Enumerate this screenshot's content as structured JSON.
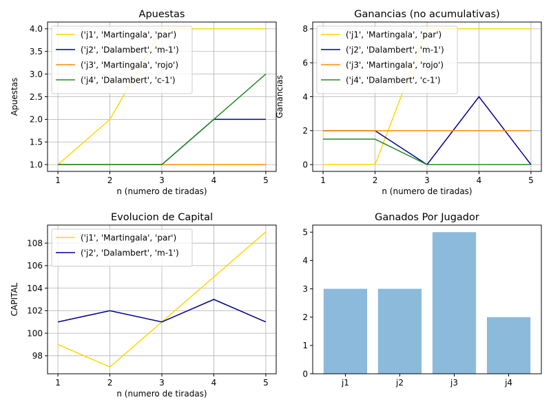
{
  "chart_data": [
    {
      "type": "line",
      "title": "Apuestas",
      "xlabel": "n (numero de tiradas)",
      "ylabel": "Apuestas",
      "x": [
        1,
        2,
        3,
        4,
        5
      ],
      "xlim": [
        0.8,
        5.2
      ],
      "ylim": [
        0.85,
        4.15
      ],
      "xticks": [
        1,
        2,
        3,
        4,
        5
      ],
      "yticks": [
        "1.0",
        "1.5",
        "2.0",
        "2.5",
        "3.0",
        "3.5",
        "4.0"
      ],
      "grid": true,
      "legend": "top-left",
      "series": [
        {
          "name": "('j1', 'Martingala', 'par')",
          "color": "#ffd700",
          "values": [
            1,
            2,
            4,
            4,
            4
          ]
        },
        {
          "name": "('j2', 'Dalambert', 'm-1')",
          "color": "#00008b",
          "values": [
            1,
            1,
            1,
            2,
            2
          ]
        },
        {
          "name": "('j3', 'Martingala', 'rojo')",
          "color": "#ff8c00",
          "values": [
            1,
            1,
            1,
            1,
            1
          ]
        },
        {
          "name": "('j4', 'Dalambert', 'c-1')",
          "color": "#228b22",
          "values": [
            1,
            1,
            1,
            2,
            3
          ]
        }
      ]
    },
    {
      "type": "line",
      "title": "Ganancias (no acumulativas)",
      "xlabel": "n (numero de tiradas)",
      "ylabel": "Ganancias",
      "x": [
        1,
        2,
        3,
        4,
        5
      ],
      "xlim": [
        0.8,
        5.2
      ],
      "ylim": [
        -0.4,
        8.4
      ],
      "xticks": [
        1,
        2,
        3,
        4,
        5
      ],
      "yticks": [
        "0",
        "2",
        "4",
        "6",
        "8"
      ],
      "grid": true,
      "legend": "top-left",
      "series": [
        {
          "name": "('j1', 'Martingala', 'par')",
          "color": "#ffd700",
          "values": [
            0,
            0,
            8,
            8,
            8
          ]
        },
        {
          "name": "('j2', 'Dalambert', 'm-1')",
          "color": "#00008b",
          "values": [
            2,
            2,
            0,
            4,
            0
          ]
        },
        {
          "name": "('j3', 'Martingala', 'rojo')",
          "color": "#ff8c00",
          "values": [
            2,
            2,
            2,
            2,
            2
          ]
        },
        {
          "name": "('j4', 'Dalambert', 'c-1')",
          "color": "#228b22",
          "values": [
            1.5,
            1.5,
            0,
            0,
            0
          ]
        }
      ]
    },
    {
      "type": "line",
      "title": "Evolucion de Capital",
      "xlabel": "n (numero de tiradas)",
      "ylabel": "CAPITAL",
      "x": [
        1,
        2,
        3,
        4,
        5
      ],
      "xlim": [
        0.8,
        5.2
      ],
      "ylim": [
        96.4,
        109.6
      ],
      "xticks": [
        1,
        2,
        3,
        4,
        5
      ],
      "yticks": [
        "98",
        "100",
        "102",
        "104",
        "106",
        "108"
      ],
      "grid": true,
      "legend": "top-left",
      "series": [
        {
          "name": "('j1', 'Martingala', 'par')",
          "color": "#ffd700",
          "values": [
            99,
            97,
            101,
            105,
            109
          ]
        },
        {
          "name": "('j2', 'Dalambert', 'm-1')",
          "color": "#00008b",
          "values": [
            101,
            102,
            101,
            103,
            101
          ]
        }
      ]
    },
    {
      "type": "bar",
      "title": "Ganados Por Jugador",
      "categories": [
        "j1",
        "j2",
        "j3",
        "j4"
      ],
      "values": [
        3,
        3,
        5,
        2
      ],
      "ylim": [
        0,
        5.25
      ],
      "yticks": [
        "0",
        "1",
        "2",
        "3",
        "4",
        "5"
      ],
      "grid": false,
      "color": "#8cbadb"
    }
  ]
}
